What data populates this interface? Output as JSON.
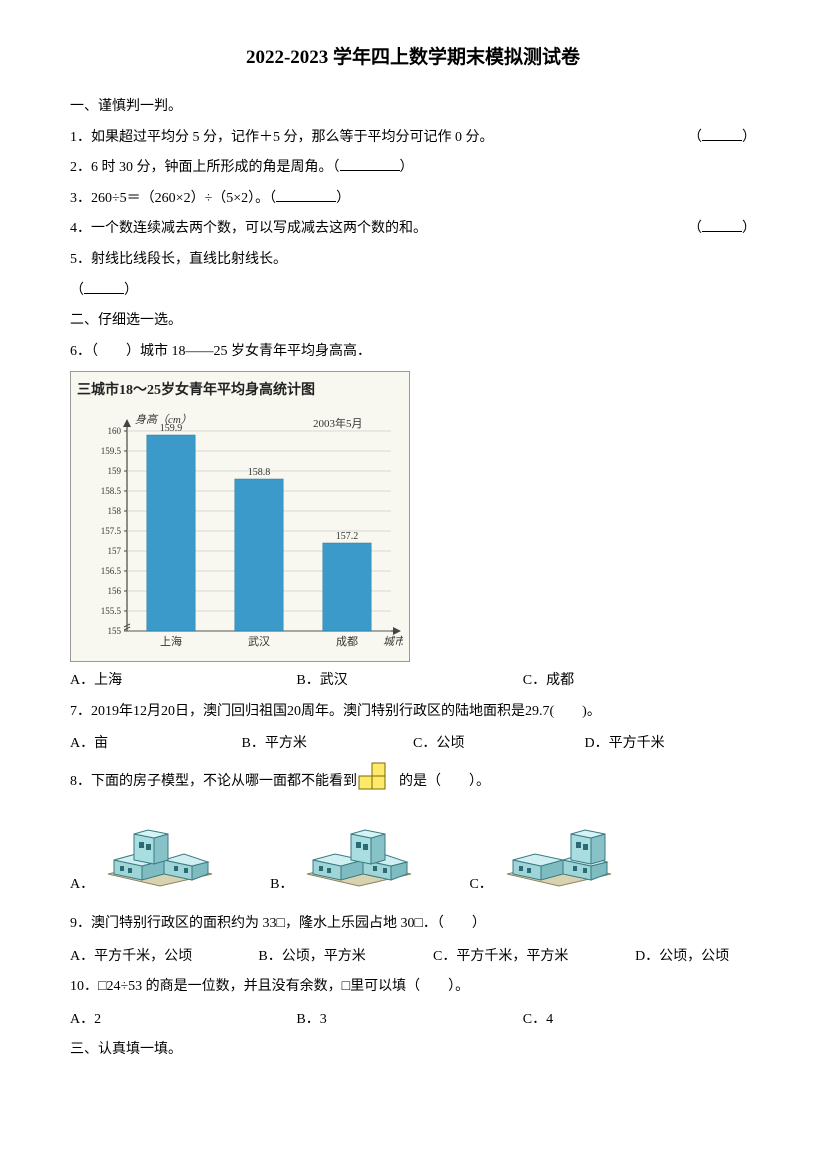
{
  "title": "2022-2023 学年四上数学期末模拟测试卷",
  "section1": "一、谨慎判一判。",
  "q1": "1．如果超过平均分 5 分，记作＋5 分，那么等于平均分可记作 0 分。",
  "q2": "2．6 时 30 分，钟面上所形成的角是周角。（",
  "q2_close": "）",
  "q3_a": "3．260÷5＝（260×2）÷（5×2）。（",
  "q3_close": "）",
  "q4": "4．一个数连续减去两个数，可以写成减去这两个数的和。",
  "q5a": "5．射线比线段长，直线比射线长。",
  "q5b_open": "（",
  "q5b_close": "）",
  "section2": "二、仔细选一选。",
  "q6": "6．（　　）城市 18——25 岁女青年平均身高高．",
  "chart": {
    "title": "三城市18～25岁女青年平均身高统计图",
    "y_label": "身高（cm）",
    "date": "2003年5月",
    "x_label": "城市",
    "categories": [
      "上海",
      "武汉",
      "成都"
    ],
    "values": [
      159.9,
      158.8,
      157.2
    ],
    "value_labels": [
      "159.9",
      "158.8",
      "157.2"
    ],
    "y_ticks": [
      "155",
      "155.5",
      "156",
      "156.5",
      "157",
      "157.5",
      "158",
      "158.5",
      "159",
      "159.5",
      "160"
    ],
    "y_min": 155,
    "y_max": 160,
    "bar_color": "#3b9ac9",
    "bg_color": "#f8f8f0",
    "tick_font": 9,
    "label_font": 11
  },
  "q6_opts": {
    "A": "A．上海",
    "B": "B．武汉",
    "C": "C．成都"
  },
  "q7": "7．2019年12月20日，澳门回归祖国20周年。澳门特别行政区的陆地面积是29.7(　　)。",
  "q7_opts": {
    "A": "A．亩",
    "B": "B．平方米",
    "C": "C．公顷",
    "D": "D．平方千米"
  },
  "q8a": "8．下面的房子模型，不论从哪一面都不能看到",
  "q8b": "的是（　　）。",
  "q8_opts": {
    "A": "A．",
    "B": "B．",
    "C": "C．"
  },
  "q9": "9．澳门特别行政区的面积约为 33□，隆水上乐园占地 30□．（　　）",
  "q9_opts": {
    "A": "A．平方千米，公顷",
    "B": "B．公顷，平方米",
    "C": "C．平方千米，平方米",
    "D": "D．公顷，公顷"
  },
  "q10": "10．□24÷53 的商是一位数，并且没有余数，□里可以填（　　）。",
  "q10_opts": {
    "A": "A．2",
    "B": "B．3",
    "C": "C．4"
  },
  "section3": "三、认真填一填。"
}
